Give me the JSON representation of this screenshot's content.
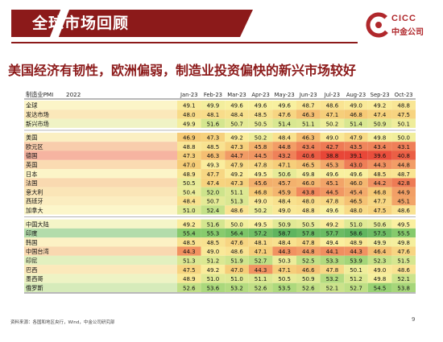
{
  "slide": {
    "title": "全球市场回顾",
    "subtitle": "美国经济有韧性，欧洲偏弱，制造业投资偏快的新兴市场较好",
    "logo_primary": "CICC",
    "logo_secondary": "中金公司",
    "source": "资料来源：各国和地区央行，Wind，中金公司研究部",
    "page_number": "9"
  },
  "chart_data": {
    "type": "heatmap",
    "title": "制造业PMI",
    "year_label": "2022",
    "columns": [
      "Jan-23",
      "Feb-23",
      "Mar-23",
      "Apr-23",
      "May-23",
      "Jun-23",
      "Jul-23",
      "Aug-23",
      "Sep-23",
      "Oct-23"
    ],
    "groups": [
      {
        "rows": [
          {
            "label": "全球",
            "values": [
              49.1,
              49.9,
              49.6,
              49.6,
              49.6,
              48.7,
              48.6,
              49.0,
              49.2,
              48.8
            ]
          },
          {
            "label": "发达市场",
            "values": [
              48.0,
              48.1,
              48.4,
              48.5,
              47.6,
              46.3,
              47.1,
              46.8,
              47.4,
              47.5
            ]
          },
          {
            "label": "新兴市场",
            "values": [
              49.9,
              51.6,
              50.7,
              50.5,
              51.4,
              51.1,
              50.2,
              51.4,
              50.9,
              50.1
            ]
          }
        ]
      },
      {
        "rows": [
          {
            "label": "美国",
            "values": [
              46.9,
              47.3,
              49.2,
              50.2,
              48.4,
              46.3,
              49.0,
              47.9,
              49.8,
              50.0
            ]
          },
          {
            "label": "欧元区",
            "values": [
              48.8,
              48.5,
              47.3,
              45.8,
              44.8,
              43.4,
              42.7,
              43.5,
              43.4,
              43.1
            ]
          },
          {
            "label": "德国",
            "values": [
              47.3,
              46.3,
              44.7,
              44.5,
              43.2,
              40.6,
              38.8,
              39.1,
              39.6,
              40.8
            ]
          },
          {
            "label": "英国",
            "values": [
              47.0,
              49.3,
              47.9,
              47.8,
              47.1,
              46.5,
              45.3,
              43.0,
              44.3,
              44.8
            ]
          },
          {
            "label": "日本",
            "values": [
              48.9,
              47.7,
              49.2,
              49.5,
              50.6,
              49.8,
              49.6,
              49.6,
              48.5,
              48.7
            ]
          },
          {
            "label": "法国",
            "values": [
              50.5,
              47.4,
              47.3,
              45.6,
              45.7,
              46.0,
              45.1,
              46.0,
              44.2,
              42.8
            ]
          },
          {
            "label": "意大利",
            "values": [
              50.4,
              52.0,
              51.1,
              46.8,
              45.9,
              43.8,
              44.5,
              45.4,
              46.8,
              44.9
            ]
          },
          {
            "label": "西班牙",
            "values": [
              48.4,
              50.7,
              51.3,
              49.0,
              48.4,
              48.0,
              47.8,
              46.5,
              47.7,
              45.1
            ]
          },
          {
            "label": "加拿大",
            "values": [
              51.0,
              52.4,
              48.6,
              50.2,
              49.0,
              48.8,
              49.6,
              48.0,
              47.5,
              48.6
            ]
          }
        ]
      },
      {
        "rows": [
          {
            "label": "中国大陆",
            "values": [
              49.2,
              51.6,
              50.0,
              49.5,
              50.9,
              50.5,
              49.2,
              51.0,
              50.6,
              49.5
            ]
          },
          {
            "label": "印度",
            "values": [
              55.4,
              55.3,
              56.4,
              57.2,
              58.7,
              57.8,
              57.7,
              58.6,
              57.5,
              55.5
            ]
          },
          {
            "label": "韩国",
            "values": [
              48.5,
              48.5,
              47.6,
              48.1,
              48.4,
              47.8,
              49.4,
              48.9,
              49.9,
              49.8
            ]
          },
          {
            "label": "中国台湾",
            "values": [
              44.3,
              49.0,
              48.6,
              47.1,
              44.3,
              44.8,
              44.1,
              44.3,
              46.4,
              47.6
            ]
          },
          {
            "label": "印尼",
            "values": [
              51.3,
              51.2,
              51.9,
              52.7,
              50.3,
              52.5,
              53.3,
              53.9,
              52.3,
              51.5
            ]
          },
          {
            "label": "巴西",
            "values": [
              47.5,
              49.2,
              47.0,
              44.3,
              47.1,
              46.6,
              47.8,
              50.1,
              49.0,
              48.6
            ]
          },
          {
            "label": "墨西哥",
            "values": [
              48.9,
              51.0,
              51.0,
              51.1,
              50.5,
              50.9,
              53.2,
              51.2,
              49.8,
              52.1
            ]
          },
          {
            "label": "俄罗斯",
            "values": [
              52.6,
              53.6,
              53.2,
              52.6,
              53.5,
              52.6,
              52.1,
              52.7,
              54.5,
              53.8
            ]
          }
        ]
      }
    ]
  }
}
